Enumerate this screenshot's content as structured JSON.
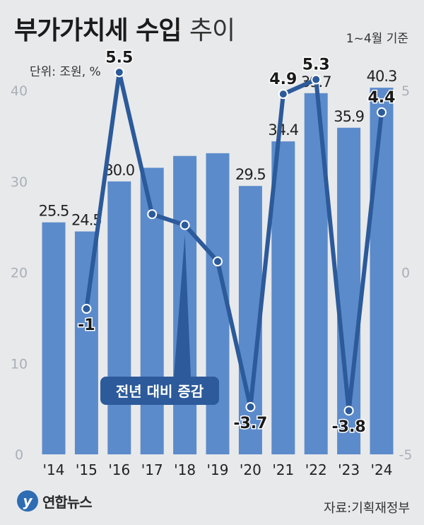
{
  "header": {
    "title_bold": "부가가치세 수입",
    "title_light": "추이",
    "basis": "1~4월 기준",
    "unit": "단위: 조원, %"
  },
  "footer": {
    "source": "자료:기획재정부",
    "logo_mark": "y",
    "logo_name": "연합뉴스"
  },
  "colors": {
    "bar": "#5b8bcb",
    "line": "#2c5a9a",
    "axis_text": "#aab0b8",
    "label_box": "#2c5a9a"
  },
  "chart_data": {
    "type": "bar",
    "categories": [
      "'14",
      "'15",
      "'16",
      "'17",
      "'18",
      "'19",
      "'20",
      "'21",
      "'22",
      "'23",
      "'24"
    ],
    "series": [
      {
        "type": "bar",
        "axis": "left",
        "values": [
          25.5,
          24.5,
          30.0,
          31.5,
          32.8,
          33.1,
          29.5,
          34.4,
          39.7,
          35.9,
          40.3
        ],
        "labels": [
          "25.5",
          "24.5",
          "30.0",
          "",
          "",
          "",
          "29.5",
          "34.4",
          "39.7",
          "35.9",
          "40.3"
        ]
      },
      {
        "type": "line",
        "axis": "right",
        "name": "전년 대비 증감",
        "values": [
          null,
          -1.0,
          5.5,
          1.6,
          1.3,
          0.3,
          -3.7,
          4.9,
          5.3,
          -3.8,
          4.4
        ],
        "labels": [
          "",
          "-1",
          "5.5",
          "",
          "",
          "",
          "-3.7",
          "4.9",
          "5.3",
          "-3.8",
          "4.4"
        ]
      }
    ],
    "y_left": {
      "range": [
        0,
        40
      ],
      "ticks": [
        "0",
        "10",
        "20",
        "30",
        "40"
      ]
    },
    "y_right": {
      "range": [
        -5,
        5
      ],
      "ticks": [
        "-5",
        "0",
        "5"
      ]
    }
  }
}
